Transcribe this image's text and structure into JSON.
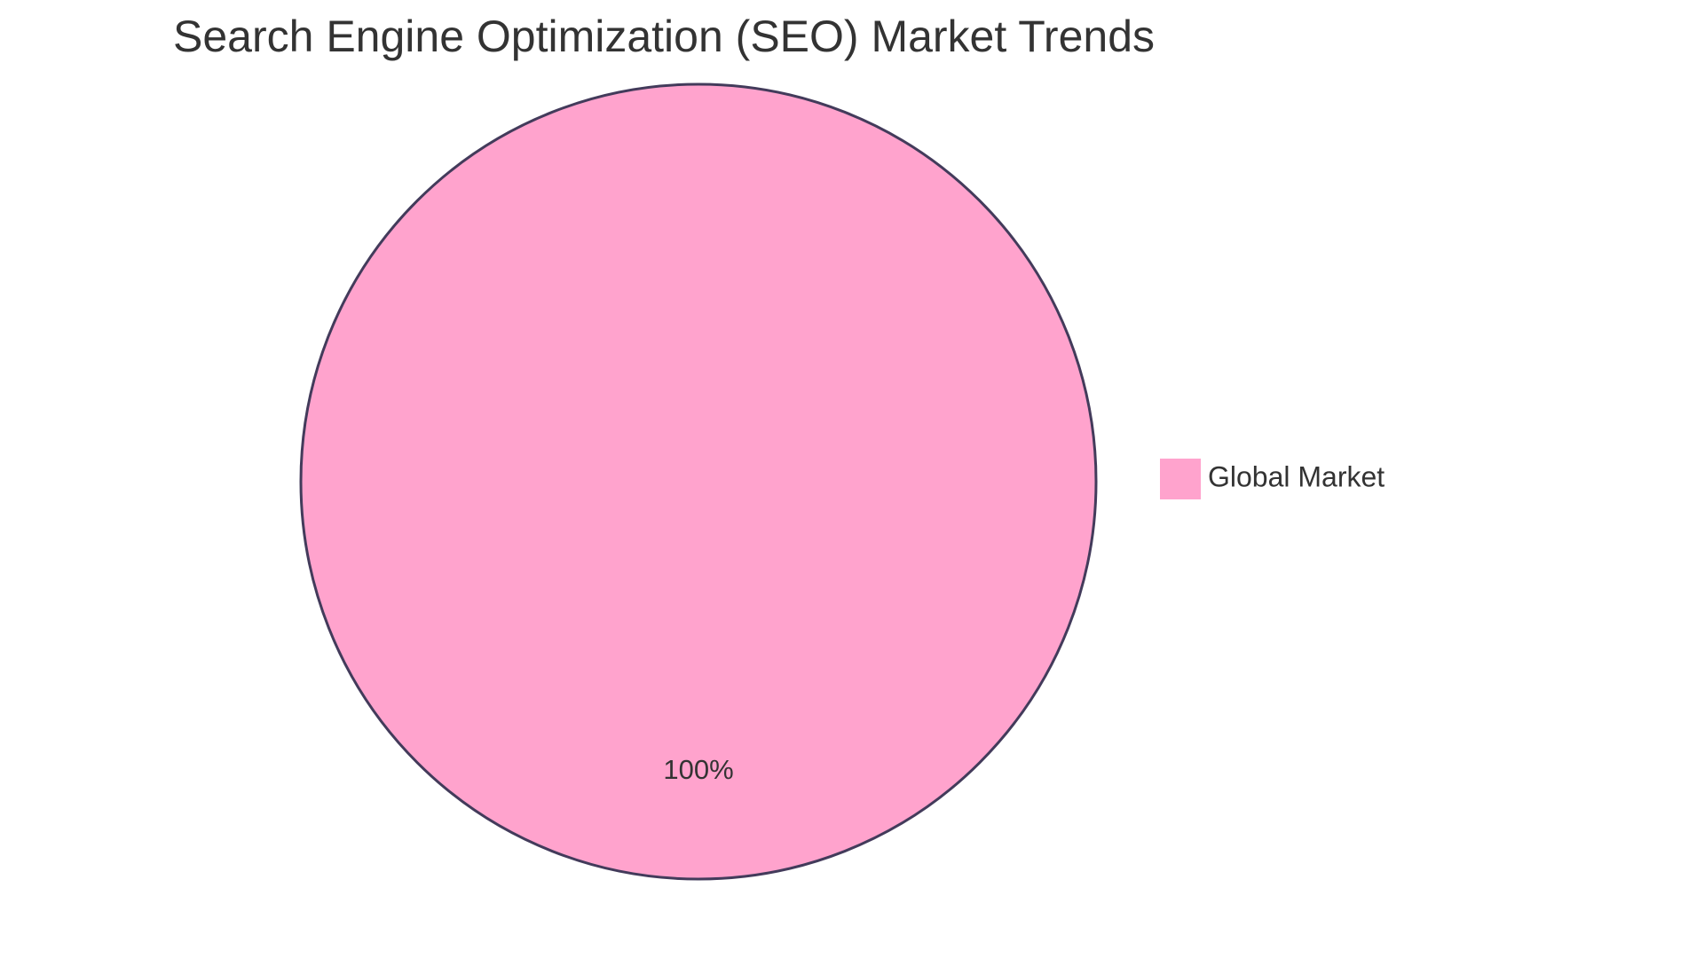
{
  "chart_data": {
    "type": "pie",
    "title": "Search Engine Optimization (SEO) Market Trends",
    "slices": [
      {
        "label": "Global Market",
        "value": 100,
        "percent_label": "100%",
        "color": "#ffa3cd"
      }
    ],
    "legend": {
      "placement": "right",
      "entries": [
        "Global Market"
      ]
    },
    "stroke_color": "#433b5b"
  }
}
